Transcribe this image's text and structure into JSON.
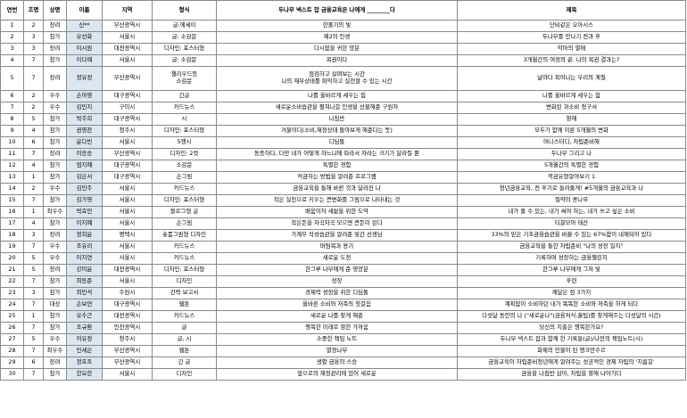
{
  "headers": [
    "연번",
    "조명",
    "상명",
    "이름",
    "지역",
    "형식",
    "두나무 넥스트 잡 금융교육은 나에게 ________다",
    "제목"
  ],
  "rows": [
    [
      "1",
      "2",
      "장려",
      "신**",
      "부산광역시",
      "글:에세이",
      "한줄기의 빛",
      "단비같은 오아시스"
    ],
    [
      "2",
      "3",
      "참가",
      "유선화",
      "서울시",
      "글: 소감문",
      "제2의 인생",
      "두나무를 만나기 전과 후"
    ],
    [
      "3",
      "3",
      "장려",
      "이시원",
      "대전광역시",
      "디자인: 포스터형",
      "다시없을 귀한 양분",
      "악마의 열매"
    ],
    [
      "4",
      "7",
      "참가",
      "이다예",
      "서울시",
      "글: 소감문",
      "복권이다",
      "3개월간의 여정의 끝. 나의 복권 결과는?"
    ],
    [
      "5",
      "7",
      "장려",
      "정유정",
      "부산광역시",
      "챌리우드등\n소감문",
      "점검하고 살펴보는 시간\n나의 재무상태를 파악하고 실천할 수 있는 시간",
      "날마다 피어나는 우리의 계절"
    ],
    [
      "6",
      "2",
      "우수",
      "손아영",
      "대구광역시",
      "긴글",
      "나를 올바르게 세우는 힘",
      "나를 올바르게 세우는 힘"
    ],
    [
      "7",
      "2",
      "우수",
      "김민지",
      "구미시",
      "카드뉴스",
      "새로운소비습관을 펼쳐나갈 인생을 선물해준 구원자",
      "변화된 과소비 청구서"
    ],
    [
      "8",
      "5",
      "참가",
      "박주희",
      "대구광역시",
      "시",
      "나침반",
      "항해"
    ],
    [
      "9",
      "4",
      "참가",
      "권영찬",
      "청주시",
      "디자인: 포스터형",
      "겨울이다(소비,재정상태 돌아보게 해준다는 뜻)",
      "모두가 함께 이룬 5개월의 변화"
    ],
    [
      "10",
      "6",
      "참가",
      "윤다빈",
      "서울시",
      "5행시",
      "디딤돌",
      "머니스터디, 자립준비해"
    ],
    [
      "11",
      "7",
      "장려",
      "이응승",
      "부산광역시",
      "디자인: 2컷",
      "동등하다, 다만 내가 어떻게 하느냐에 따라서 자라는 크기가 달라질 뿐",
      "두나무 그리고 나"
    ],
    [
      "12",
      "4",
      "참가",
      "엄지혜",
      "대구광역시",
      "소감문",
      "특별한 경험",
      "5개월간의 특별한 경험"
    ],
    [
      "13",
      "1",
      "참가",
      "김은서",
      "대구광역시",
      "손그림",
      "적금하는 방법을 알려준 프로그램",
      "적금유형알아보기 1"
    ],
    [
      "14",
      "2",
      "우수",
      "김민주",
      "서울시",
      "카드뉴스",
      "금융교육을 통해 바뀐 것과 달라진 나",
      "청년금융교육, 전 후기로 들려줄게! #5개월의 금융교육과 나"
    ],
    [
      "15",
      "7",
      "참가",
      "김가영",
      "서울시",
      "디자인: 포스터형",
      "작은 실천으로 키우는 큰변화를 그림으로 나타내는 것",
      "절약의 콩나무"
    ],
    [
      "16",
      "1",
      "최우수",
      "박효민",
      "서울시",
      "블로그형 글",
      "배움이자 새삶을 위한 도약",
      "내가 줄 수 있는, 내가 써야 하는, 내가 쓰고 싶은 소비"
    ],
    [
      "17",
      "4",
      "참가",
      "이지혜",
      "서울시",
      "손그림",
      "작은돈을 차곡차곡 모으면 큰돈이 된다",
      "티끌모아 태산"
    ],
    [
      "18",
      "3",
      "장려",
      "정희윤",
      "평택시",
      "숏폼그림형 디자인",
      "가계부 작성습관을 알려준 빛간 선생님",
      "33%의 믿은 기초금융습관을 바꿀 수 있는 67%함이 내재되어 있다"
    ],
    [
      "19",
      "7",
      "우수",
      "조유리",
      "서울시",
      "카드뉴스",
      "버팀목과 용기",
      "금융교육을 통한 자립준비 \"나의 성장 일지\""
    ],
    [
      "20",
      "5",
      "우수",
      "이지연",
      "서울시",
      "카드뉴스",
      "새로운 도전",
      "기록하며 성장하는 금융챌린지"
    ],
    [
      "21",
      "5",
      "장려",
      "강미윤",
      "대전광역시",
      "디자인: 포스터형",
      "한그루 나무에게 준 영양분",
      "한그루 나무에게 그저 빛"
    ],
    [
      "22",
      "7",
      "참가",
      "최동준",
      "서울시",
      "디자인",
      "성장",
      "후련"
    ],
    [
      "23",
      "3",
      "참가",
      "최민석",
      "수원시",
      "간략 보고서",
      "경제력 성장을 위한 디딤돌",
      "깨달은 점 3가지"
    ],
    [
      "24",
      "7",
      "대상",
      "손보연",
      "대구광역시",
      "웹툰",
      "올바른 소비와 저축의 첫걸음",
      "계획없이 소비하던 내가 똑똑한 소비와 저축을 하게 되다"
    ],
    [
      "25",
      "1",
      "참가",
      "유수근",
      "대전광역시",
      "카드뉴스",
      "새로운 나를 찾게 해준",
      "다섯달 동안의 나 (\"새로운나\"(금융저식,꿀팁)를 찾게해주는 다섯달의 시간)"
    ],
    [
      "26",
      "7",
      "참가",
      "조규환",
      "인천광역시",
      "글",
      "행복한 미래로 향한 가까움",
      "당신의 지출은 행복한가요?"
    ],
    [
      "27",
      "5",
      "우수",
      "이유정",
      "청주시",
      "글, 시",
      "소중한 책임 노트",
      "두나무 넥스트 잡과 함께 한 기록들(글)/나만의 책임노트(시)"
    ],
    [
      "28",
      "7",
      "최우수",
      "민세은",
      "부산광역시",
      "웹툰",
      "열정나무",
      "화제의 인물이 된 행크만수르"
    ],
    [
      "29",
      "6",
      "장려",
      "정호조",
      "부산광역시",
      "긴 글",
      "생활 금융의 스승",
      "금융교육이 자립준비청년에게 알려주는 성공적인 경제 자립의 '지름길'"
    ],
    [
      "30",
      "7",
      "참가",
      "한요한",
      "서울시",
      "디자인",
      "앞으로의 재정관리에 있어 새로운",
      "금융을 나침반 삼아, 자립을 향해 나아가다"
    ]
  ]
}
